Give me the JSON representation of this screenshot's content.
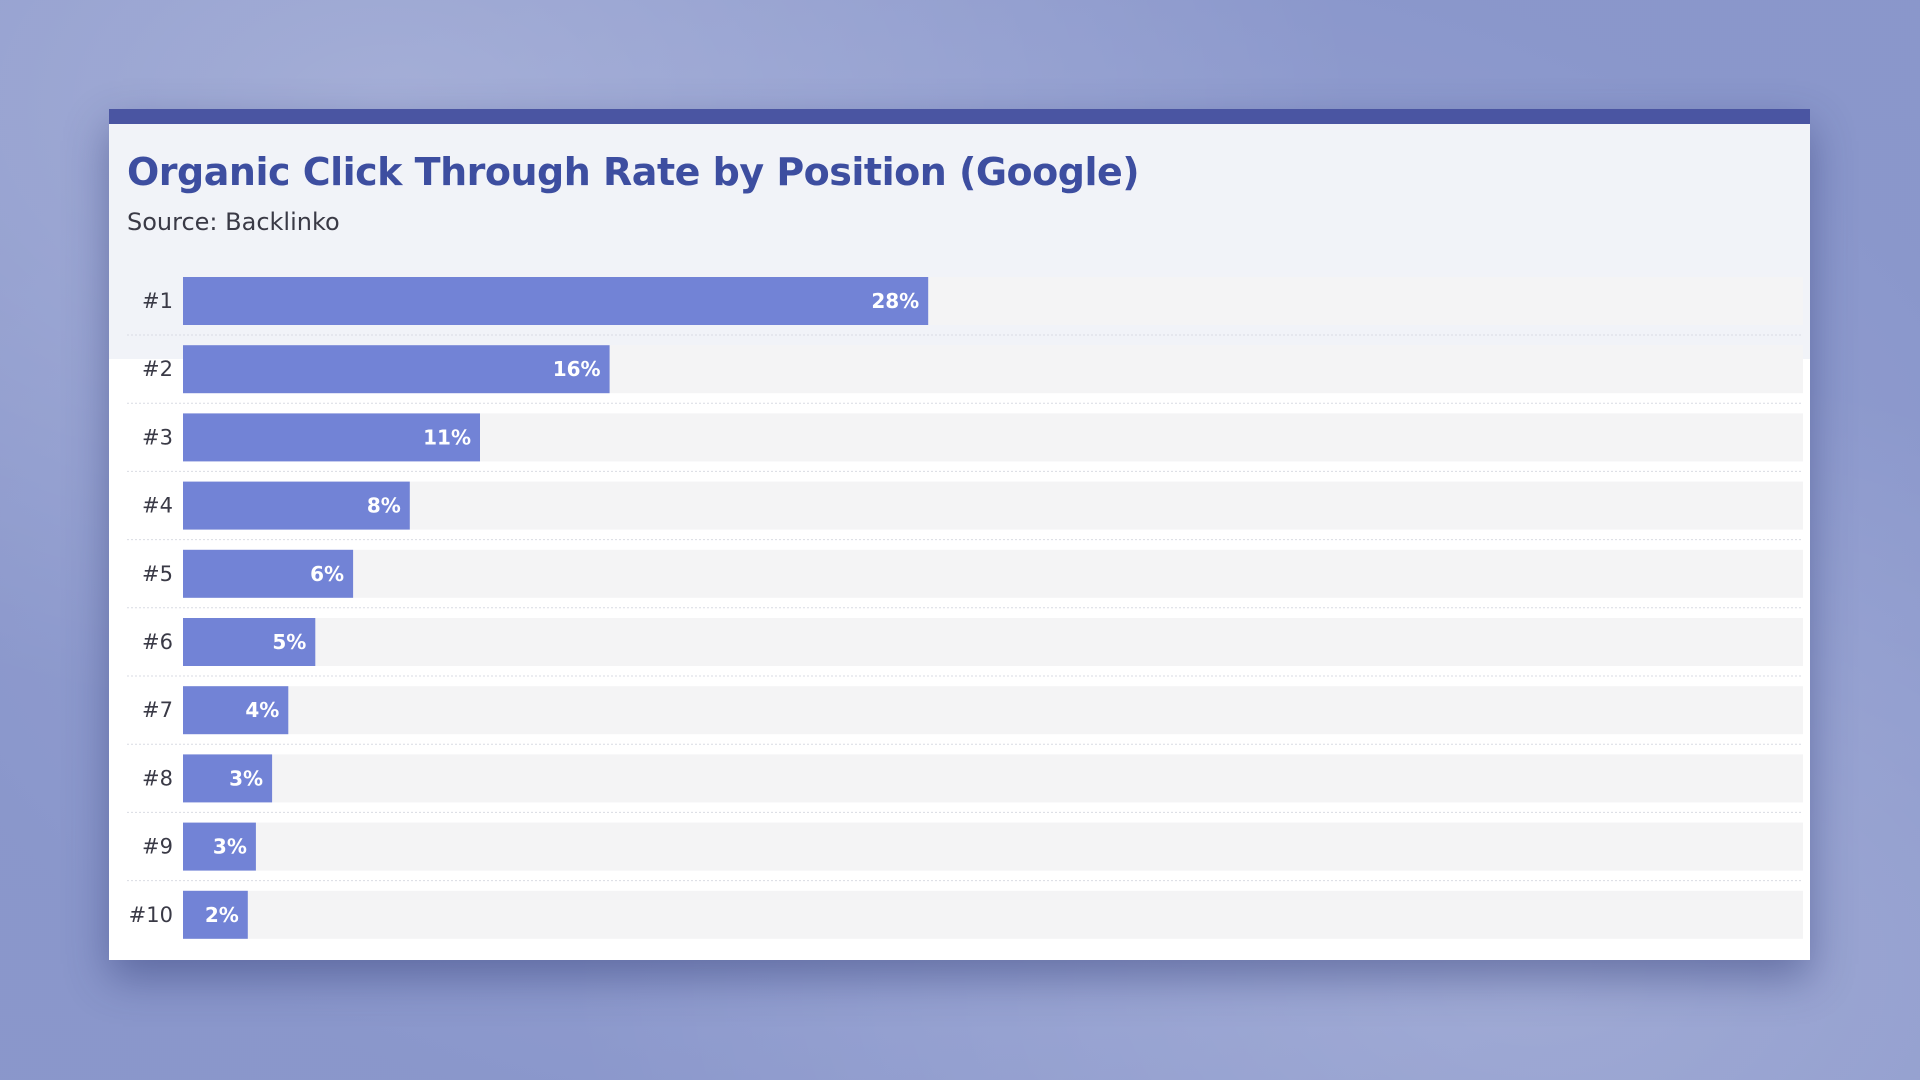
{
  "chart_data": {
    "type": "bar",
    "orientation": "horizontal",
    "title": "Organic Click Through Rate by Position (Google)",
    "subtitle": "Source: Backlinko",
    "categories": [
      "#1",
      "#2",
      "#3",
      "#4",
      "#5",
      "#6",
      "#7",
      "#8",
      "#9",
      "#10"
    ],
    "values": [
      27.6,
      15.8,
      11.0,
      8.4,
      6.3,
      4.9,
      3.9,
      3.3,
      2.7,
      2.4
    ],
    "value_labels": [
      "28%",
      "16%",
      "11%",
      "8%",
      "6%",
      "5%",
      "4%",
      "3%",
      "3%",
      "2%"
    ],
    "xlim": [
      0,
      60
    ],
    "unit": "%",
    "grid": false,
    "legend": "none",
    "colors": {
      "bar": "#7283d6",
      "track": "#f4f4f5",
      "title": "#3d4ea0",
      "accent_bar": "#4a55a2",
      "header_bg": "#f1f3f8"
    }
  }
}
